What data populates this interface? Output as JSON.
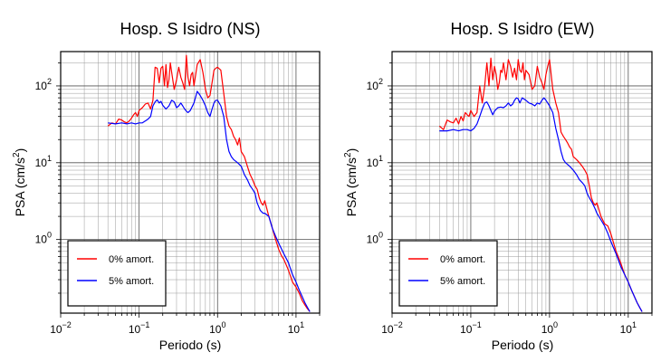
{
  "page": {
    "width": 730,
    "height": 400
  },
  "chart_data": [
    {
      "type": "line",
      "title": "Hosp. S Isidro (NS)",
      "xlabel": "Periodo (s)",
      "ylabel": "PSA (cm/s2)",
      "xscale": "log",
      "yscale": "log",
      "xlim": [
        0.01,
        20
      ],
      "ylim": [
        0.11,
        280
      ],
      "xticks": [
        {
          "v": 0.01,
          "label": "10",
          "exp": "−2"
        },
        {
          "v": 0.1,
          "label": "10",
          "exp": "−1"
        },
        {
          "v": 1,
          "label": "10",
          "exp": "0"
        },
        {
          "v": 10,
          "label": "10",
          "exp": "1"
        }
      ],
      "yticks": [
        {
          "v": 1,
          "label": "10",
          "exp": "0"
        },
        {
          "v": 10,
          "label": "10",
          "exp": "1"
        },
        {
          "v": 100,
          "label": "10",
          "exp": "2"
        }
      ],
      "grid": true,
      "legend_position": "bottom-left",
      "series": [
        {
          "name": "0% amort.",
          "color": "#ff0000",
          "x": [
            0.04,
            0.045,
            0.05,
            0.055,
            0.06,
            0.065,
            0.07,
            0.075,
            0.08,
            0.085,
            0.09,
            0.095,
            0.1,
            0.11,
            0.12,
            0.13,
            0.14,
            0.15,
            0.16,
            0.17,
            0.18,
            0.19,
            0.2,
            0.21,
            0.22,
            0.23,
            0.24,
            0.25,
            0.26,
            0.28,
            0.3,
            0.32,
            0.34,
            0.36,
            0.38,
            0.4,
            0.42,
            0.44,
            0.46,
            0.48,
            0.5,
            0.55,
            0.6,
            0.65,
            0.7,
            0.75,
            0.8,
            0.85,
            0.9,
            0.95,
            1.0,
            1.1,
            1.2,
            1.3,
            1.4,
            1.5,
            1.6,
            1.7,
            1.8,
            1.9,
            2.0,
            2.2,
            2.4,
            2.6,
            2.8,
            3.0,
            3.2,
            3.4,
            3.6,
            3.8,
            4.0,
            4.5,
            5.0,
            5.5,
            6.0,
            6.5,
            7.0,
            8.0,
            9.0,
            10.0,
            11.0,
            12.0,
            13.0,
            14.0,
            15.0
          ],
          "y": [
            30,
            33,
            32,
            37,
            36,
            34,
            33,
            35,
            38,
            42,
            45,
            40,
            48,
            52,
            58,
            60,
            50,
            65,
            175,
            170,
            110,
            170,
            180,
            100,
            190,
            95,
            120,
            200,
            150,
            90,
            120,
            175,
            130,
            110,
            90,
            250,
            130,
            100,
            140,
            150,
            100,
            190,
            220,
            150,
            90,
            70,
            75,
            110,
            160,
            170,
            175,
            160,
            80,
            40,
            30,
            27,
            22,
            20,
            17,
            21,
            14,
            12,
            9,
            7,
            6,
            5,
            4.5,
            3.5,
            3.0,
            2.8,
            3.2,
            2.0,
            1.4,
            1.0,
            0.75,
            0.62,
            0.55,
            0.4,
            0.28,
            0.24,
            0.2,
            0.16,
            0.14,
            0.125,
            0.115
          ]
        },
        {
          "name": "5% amort.",
          "color": "#0000ff",
          "x": [
            0.04,
            0.05,
            0.06,
            0.07,
            0.08,
            0.09,
            0.1,
            0.11,
            0.12,
            0.13,
            0.14,
            0.15,
            0.16,
            0.17,
            0.18,
            0.19,
            0.2,
            0.22,
            0.24,
            0.26,
            0.28,
            0.3,
            0.32,
            0.34,
            0.36,
            0.38,
            0.4,
            0.42,
            0.45,
            0.5,
            0.55,
            0.6,
            0.65,
            0.7,
            0.75,
            0.8,
            0.85,
            0.9,
            0.95,
            1.0,
            1.1,
            1.2,
            1.3,
            1.4,
            1.5,
            1.6,
            1.8,
            2.0,
            2.2,
            2.4,
            2.6,
            2.8,
            3.0,
            3.2,
            3.5,
            3.8,
            4.0,
            4.5,
            5.0,
            5.5,
            6.0,
            7.0,
            8.0,
            9.0,
            10.0,
            11.0,
            12.0,
            13.0,
            14.0,
            15.0
          ],
          "y": [
            33,
            32,
            33,
            32,
            33,
            32,
            33,
            33,
            35,
            37,
            40,
            55,
            62,
            66,
            60,
            63,
            56,
            50,
            55,
            65,
            62,
            52,
            55,
            60,
            55,
            50,
            47,
            45,
            48,
            60,
            85,
            75,
            65,
            55,
            45,
            40,
            50,
            60,
            65,
            65,
            55,
            40,
            20,
            14,
            12,
            11,
            10,
            9,
            7,
            6,
            5,
            4.5,
            4,
            3,
            2.4,
            2.2,
            2.2,
            2.0,
            1.4,
            1.1,
            0.9,
            0.65,
            0.5,
            0.35,
            0.28,
            0.22,
            0.18,
            0.15,
            0.13,
            0.115
          ]
        }
      ]
    },
    {
      "type": "line",
      "title": "Hosp. S Isidro (EW)",
      "xlabel": "Periodo (s)",
      "ylabel": "PSA (cm/s2)",
      "xscale": "log",
      "yscale": "log",
      "xlim": [
        0.01,
        20
      ],
      "ylim": [
        0.11,
        280
      ],
      "xticks": [
        {
          "v": 0.01,
          "label": "10",
          "exp": "−2"
        },
        {
          "v": 0.1,
          "label": "10",
          "exp": "−1"
        },
        {
          "v": 1,
          "label": "10",
          "exp": "0"
        },
        {
          "v": 10,
          "label": "10",
          "exp": "1"
        }
      ],
      "yticks": [
        {
          "v": 1,
          "label": "10",
          "exp": "0"
        },
        {
          "v": 10,
          "label": "10",
          "exp": "1"
        },
        {
          "v": 100,
          "label": "10",
          "exp": "2"
        }
      ],
      "grid": true,
      "legend_position": "bottom-left",
      "series": [
        {
          "name": "0% amort.",
          "color": "#ff0000",
          "x": [
            0.04,
            0.045,
            0.05,
            0.055,
            0.06,
            0.065,
            0.07,
            0.075,
            0.08,
            0.085,
            0.09,
            0.095,
            0.1,
            0.11,
            0.12,
            0.13,
            0.14,
            0.15,
            0.16,
            0.17,
            0.18,
            0.19,
            0.2,
            0.21,
            0.22,
            0.23,
            0.24,
            0.25,
            0.26,
            0.28,
            0.3,
            0.32,
            0.34,
            0.36,
            0.38,
            0.4,
            0.42,
            0.44,
            0.46,
            0.48,
            0.5,
            0.55,
            0.6,
            0.65,
            0.7,
            0.75,
            0.8,
            0.85,
            0.9,
            0.95,
            1.0,
            1.1,
            1.2,
            1.3,
            1.4,
            1.5,
            1.6,
            1.7,
            1.8,
            1.9,
            2.0,
            2.2,
            2.4,
            2.6,
            2.8,
            3.0,
            3.2,
            3.4,
            3.6,
            3.8,
            4.0,
            4.5,
            5.0,
            5.5,
            6.0,
            6.5,
            7.0,
            8.0,
            9.0,
            10.0,
            11.0,
            12.0,
            13.0,
            14.0,
            15.0
          ],
          "y": [
            30,
            27,
            36,
            34,
            33,
            38,
            32,
            40,
            35,
            45,
            42,
            40,
            48,
            40,
            45,
            100,
            60,
            100,
            200,
            100,
            230,
            120,
            180,
            140,
            90,
            110,
            160,
            150,
            200,
            120,
            220,
            180,
            130,
            170,
            120,
            220,
            160,
            150,
            200,
            120,
            160,
            140,
            90,
            100,
            180,
            130,
            110,
            90,
            140,
            180,
            220,
            90,
            60,
            45,
            25,
            22,
            20,
            18,
            16,
            15,
            12,
            11,
            10,
            9,
            8,
            7,
            5,
            3.5,
            3.0,
            2.8,
            3.0,
            2.0,
            1.6,
            1.5,
            1.2,
            0.9,
            0.7,
            0.5,
            0.35,
            0.28,
            0.22,
            0.18,
            0.15,
            0.13,
            0.115
          ]
        },
        {
          "name": "5% amort.",
          "color": "#0000ff",
          "x": [
            0.04,
            0.05,
            0.06,
            0.07,
            0.08,
            0.09,
            0.1,
            0.11,
            0.12,
            0.13,
            0.14,
            0.15,
            0.16,
            0.17,
            0.18,
            0.19,
            0.2,
            0.22,
            0.24,
            0.26,
            0.28,
            0.3,
            0.32,
            0.34,
            0.36,
            0.38,
            0.4,
            0.42,
            0.45,
            0.5,
            0.55,
            0.6,
            0.65,
            0.7,
            0.75,
            0.8,
            0.85,
            0.9,
            0.95,
            1.0,
            1.1,
            1.2,
            1.3,
            1.4,
            1.5,
            1.6,
            1.8,
            2.0,
            2.2,
            2.4,
            2.6,
            2.8,
            3.0,
            3.2,
            3.5,
            3.8,
            4.0,
            4.5,
            5.0,
            5.5,
            6.0,
            7.0,
            8.0,
            9.0,
            10.0,
            11.0,
            12.0,
            13.0,
            14.0,
            15.0
          ],
          "y": [
            26,
            26,
            27,
            26,
            27,
            27,
            26,
            28,
            32,
            40,
            50,
            60,
            62,
            55,
            48,
            42,
            47,
            52,
            53,
            52,
            55,
            60,
            55,
            58,
            65,
            70,
            68,
            60,
            70,
            65,
            60,
            58,
            55,
            60,
            58,
            65,
            70,
            65,
            60,
            55,
            45,
            28,
            20,
            14,
            11,
            10,
            9,
            8,
            7,
            6,
            5.5,
            5,
            4,
            3.5,
            3.0,
            2.5,
            2.2,
            1.8,
            1.5,
            1.2,
            0.95,
            0.65,
            0.45,
            0.35,
            0.28,
            0.22,
            0.18,
            0.15,
            0.13,
            0.115
          ]
        }
      ]
    }
  ]
}
